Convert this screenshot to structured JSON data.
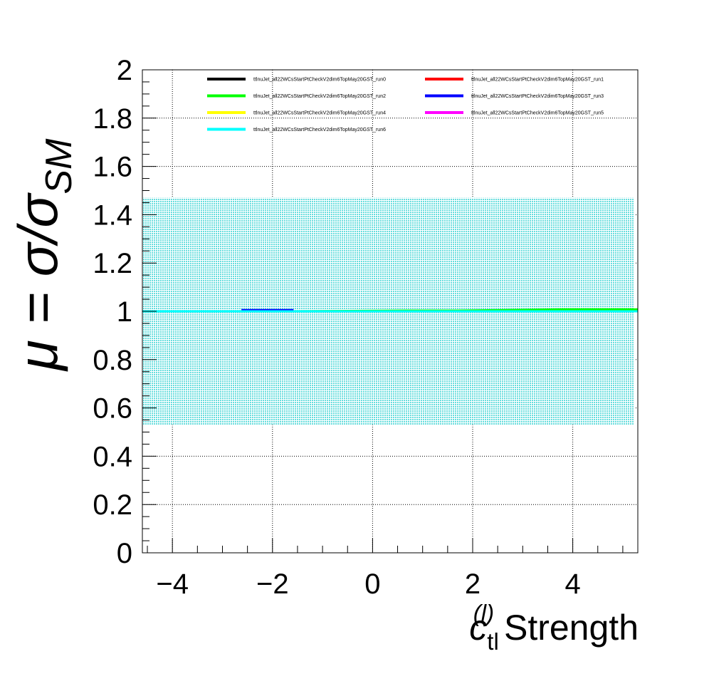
{
  "chart_data": {
    "type": "line",
    "xlabel_main": "c",
    "xlabel_sub": "tl",
    "xlabel_sup": "(l)",
    "xlabel_rest": " Strength",
    "ylabel_prefix": "μ = σ/σ",
    "ylabel_sub": "SM",
    "xlim": [
      -4.6,
      5.3
    ],
    "ylim": [
      0,
      2
    ],
    "x_ticks": [
      -4,
      -2,
      0,
      2,
      4
    ],
    "x_tick_labels": [
      "−4",
      "−2",
      "0",
      "2",
      "4"
    ],
    "y_ticks": [
      0,
      0.2,
      0.4,
      0.6,
      0.8,
      1,
      1.2,
      1.4,
      1.6,
      1.8,
      2
    ],
    "y_tick_labels": [
      "0",
      "0.2",
      "0.4",
      "0.6",
      "0.8",
      "1",
      "1.2",
      "1.4",
      "1.6",
      "1.8",
      "2"
    ],
    "grid": true,
    "legend_placement": "top",
    "band": {
      "x": [
        -4.6,
        5.3
      ],
      "low": 0.53,
      "high": 1.47,
      "color": "#66dddd"
    },
    "series": [
      {
        "name": "ttlnuJet_all22WCsStartPtCheckV2dim6TopMay20GST_run0",
        "color": "#000000",
        "x": [
          -4.6,
          -2.6,
          -1.6,
          0.7,
          1.7,
          3.8,
          5.3
        ],
        "y": [
          1.0,
          1.0,
          1.0,
          1.0,
          1.0,
          1.0,
          1.0
        ]
      },
      {
        "name": "ttlnuJet_all22WCsStartPtCheckV2dim6TopMay20GST_run1",
        "color": "#ff0000",
        "x": [
          -4.6,
          -2.6,
          -1.6,
          0.7,
          1.7,
          3.8,
          5.3
        ],
        "y": [
          1.0,
          1.0,
          1.0,
          1.0,
          1.0,
          1.0,
          1.0
        ]
      },
      {
        "name": "ttlnuJet_all22WCsStartPtCheckV2dim6TopMay20GST_run2",
        "color": "#00ff00",
        "x": [
          -4.6,
          -2.6,
          -1.6,
          0.7,
          1.7,
          3.8,
          5.3
        ],
        "y": [
          1.0,
          1.0,
          1.0,
          1.003,
          1.003,
          1.008,
          1.008
        ]
      },
      {
        "name": "ttlnuJet_all22WCsStartPtCheckV2dim6TopMay20GST_run3",
        "color": "#0000ff",
        "x": [
          -4.6,
          -2.6,
          -2.6,
          -1.6,
          -1.6,
          5.3
        ],
        "y": [
          1.0,
          1.0,
          1.005,
          1.005,
          1.0,
          1.0
        ]
      },
      {
        "name": "ttlnuJet_all22WCsStartPtCheckV2dim6TopMay20GST_run4",
        "color": "#ffff00",
        "x": [
          -4.6,
          5.3
        ],
        "y": [
          1.0,
          1.0
        ]
      },
      {
        "name": "ttlnuJet_all22WCsStartPtCheckV2dim6TopMay20GST_run5",
        "color": "#ff00ff",
        "x": [
          -4.6,
          5.3
        ],
        "y": [
          1.0,
          1.0
        ]
      },
      {
        "name": "ttlnuJet_all22WCsStartPtCheckV2dim6TopMay20GST_run6",
        "color": "#00ffff",
        "x": [
          -4.6,
          5.3
        ],
        "y": [
          1.0,
          1.0
        ]
      }
    ]
  }
}
